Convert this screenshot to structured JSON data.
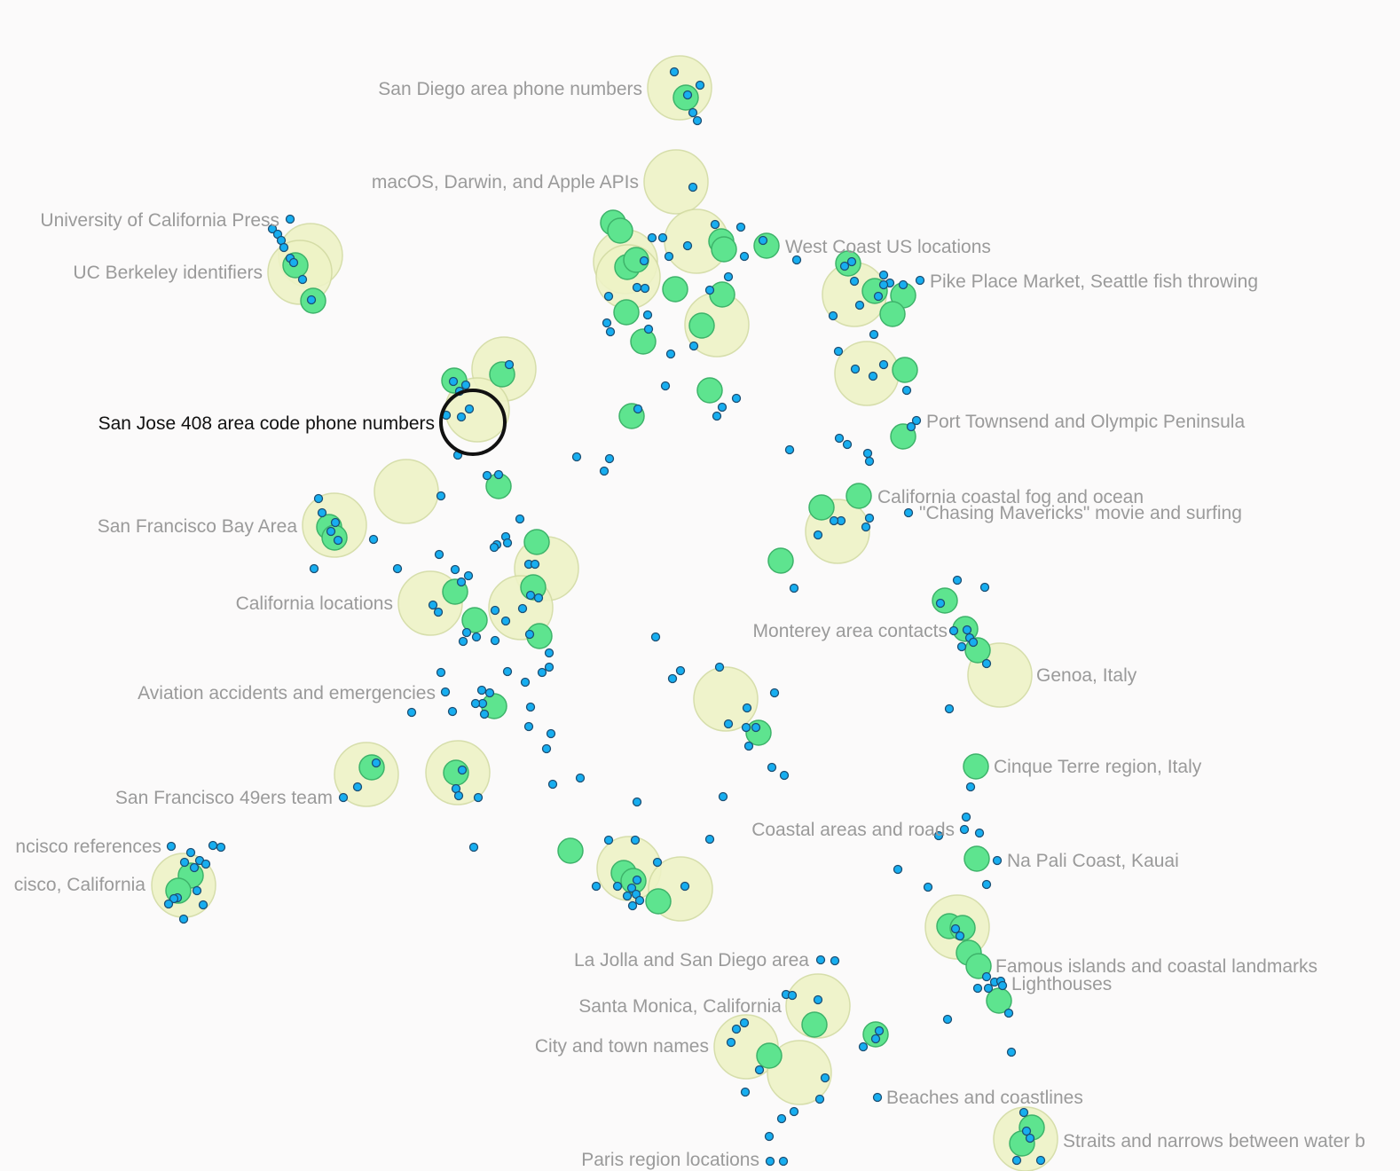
{
  "map": {
    "colors": {
      "background": "#fbfafa",
      "cluster_fill": "#eef3c6",
      "topic_fill": "#5ee48f",
      "point_fill": "#17aef0",
      "label": "#9a9a9a",
      "label_active": "#111111"
    },
    "labels": [
      {
        "id": "san-diego-phone",
        "text": "San Diego area phone numbers"
      },
      {
        "id": "macos",
        "text": "macOS, Darwin, and Apple APIs"
      },
      {
        "id": "uc-press",
        "text": "University of California Press"
      },
      {
        "id": "west-coast",
        "text": "West Coast US locations"
      },
      {
        "id": "uc-berkeley",
        "text": "UC Berkeley identifiers"
      },
      {
        "id": "pike-place",
        "text": "Pike Place Market, Seattle fish throwing"
      },
      {
        "id": "san-jose",
        "text": "San Jose 408 area code phone numbers",
        "active": true
      },
      {
        "id": "port-townsend",
        "text": "Port Townsend and Olympic Peninsula"
      },
      {
        "id": "ca-fog",
        "text": "California coastal fog and ocean"
      },
      {
        "id": "mavericks",
        "text": "\"Chasing Mavericks\" movie and surfing"
      },
      {
        "id": "sf-bay",
        "text": "San Francisco Bay Area"
      },
      {
        "id": "ca-locations",
        "text": "California locations"
      },
      {
        "id": "monterey",
        "text": "Monterey area contacts"
      },
      {
        "id": "genoa",
        "text": "Genoa, Italy"
      },
      {
        "id": "aviation",
        "text": "Aviation accidents and emergencies"
      },
      {
        "id": "cinque-terre",
        "text": "Cinque Terre region, Italy"
      },
      {
        "id": "49ers",
        "text": "San Francisco 49ers team"
      },
      {
        "id": "coastal-roads",
        "text": "Coastal areas and roads"
      },
      {
        "id": "sf-references",
        "text": "ncisco references"
      },
      {
        "id": "na-pali",
        "text": "Na Pali Coast, Kauai"
      },
      {
        "id": "sf-california",
        "text": "cisco, California"
      },
      {
        "id": "la-jolla",
        "text": "La Jolla and San Diego area"
      },
      {
        "id": "famous-islands",
        "text": "Famous islands and coastal landmarks"
      },
      {
        "id": "lighthouses",
        "text": "Lighthouses"
      },
      {
        "id": "santa-monica",
        "text": "Santa Monica, California"
      },
      {
        "id": "city-town",
        "text": "City and town names"
      },
      {
        "id": "beaches",
        "text": "Beaches and coastlines"
      },
      {
        "id": "straits",
        "text": "Straits and narrows between water b"
      },
      {
        "id": "paris",
        "text": "Paris region locations"
      }
    ]
  }
}
